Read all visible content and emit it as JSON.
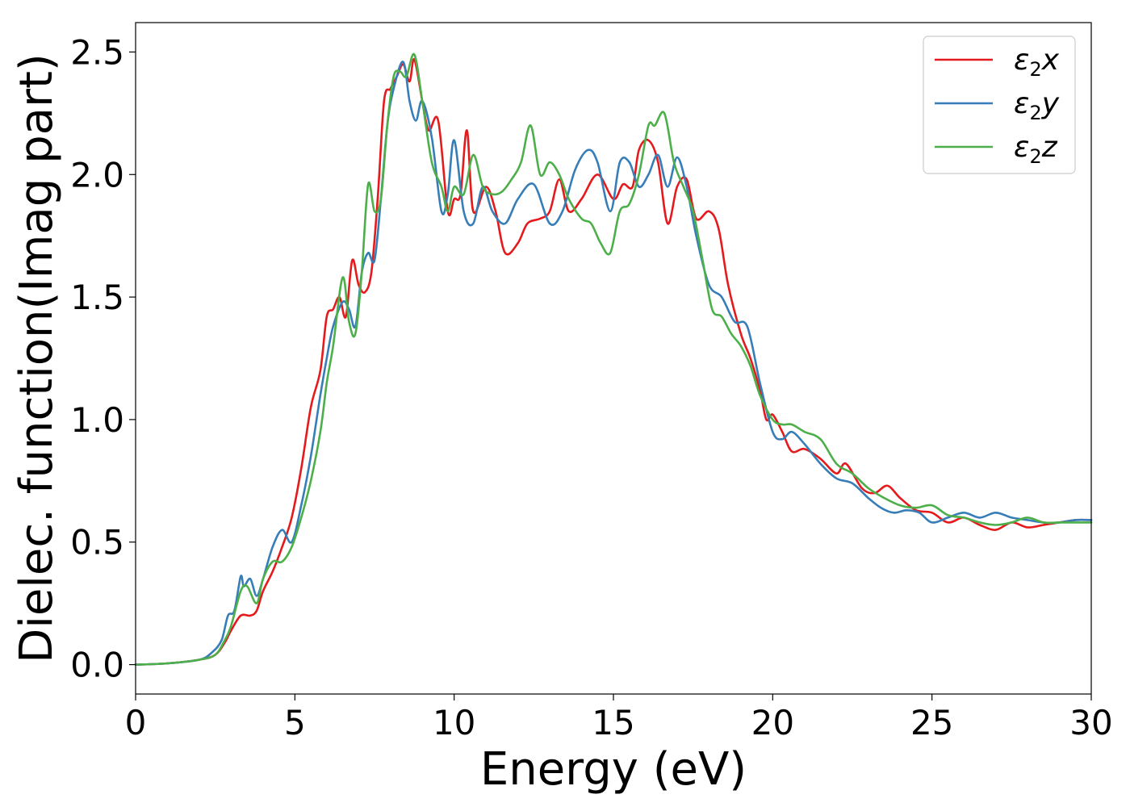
{
  "chart_data": {
    "type": "line",
    "title": "",
    "xlabel": "Energy (eV)",
    "ylabel": "Dielec. function(Imag part)",
    "xlim": [
      0,
      30
    ],
    "ylim": [
      -0.12,
      2.62
    ],
    "xticks": [
      0,
      5,
      10,
      15,
      20,
      25,
      30
    ],
    "xtick_labels": [
      "0",
      "5",
      "10",
      "15",
      "20",
      "25",
      "30"
    ],
    "yticks": [
      0.0,
      0.5,
      1.0,
      1.5,
      2.0,
      2.5
    ],
    "ytick_labels": [
      "0.0",
      "0.5",
      "1.0",
      "1.5",
      "2.0",
      "2.5"
    ],
    "grid": false,
    "legend_position": "top-right",
    "series": [
      {
        "name": "ε₂x",
        "legend_base": "ε",
        "legend_sub": "2",
        "legend_suffix": "x",
        "color": "#e41a1c",
        "x": [
          0,
          1,
          2,
          2.5,
          2.8,
          3.0,
          3.3,
          3.6,
          3.8,
          4.0,
          4.3,
          4.6,
          4.9,
          5.2,
          5.5,
          5.8,
          6.0,
          6.2,
          6.4,
          6.6,
          6.8,
          7.0,
          7.2,
          7.4,
          7.6,
          7.8,
          8.0,
          8.2,
          8.4,
          8.6,
          8.75,
          9.0,
          9.2,
          9.5,
          9.8,
          10.0,
          10.2,
          10.4,
          10.6,
          11.0,
          11.3,
          11.6,
          12.0,
          12.3,
          12.7,
          13.0,
          13.3,
          13.6,
          14.0,
          14.5,
          15.0,
          15.3,
          15.6,
          15.8,
          16.1,
          16.4,
          16.7,
          17.0,
          17.3,
          17.6,
          18.0,
          18.3,
          18.6,
          19.0,
          19.3,
          19.6,
          19.8,
          20.0,
          20.3,
          20.6,
          21.0,
          21.5,
          22.0,
          22.3,
          22.8,
          23.2,
          23.6,
          24.0,
          24.5,
          25.0,
          25.5,
          26.0,
          26.5,
          27.0,
          27.5,
          28.0,
          28.5,
          29.0,
          29.5,
          30.0
        ],
        "y": [
          0.0,
          0.005,
          0.02,
          0.04,
          0.09,
          0.14,
          0.2,
          0.2,
          0.22,
          0.3,
          0.38,
          0.48,
          0.6,
          0.8,
          1.05,
          1.2,
          1.42,
          1.45,
          1.5,
          1.42,
          1.65,
          1.55,
          1.52,
          1.6,
          1.9,
          2.3,
          2.35,
          2.4,
          2.45,
          2.38,
          2.47,
          2.3,
          2.18,
          2.22,
          1.85,
          1.9,
          1.92,
          2.18,
          1.85,
          1.95,
          1.85,
          1.68,
          1.72,
          1.8,
          1.82,
          1.85,
          1.98,
          1.85,
          1.9,
          2.0,
          1.9,
          1.96,
          1.95,
          2.1,
          2.14,
          2.05,
          1.8,
          1.95,
          1.98,
          1.82,
          1.85,
          1.78,
          1.55,
          1.35,
          1.25,
          1.12,
          1.0,
          1.02,
          0.95,
          0.87,
          0.88,
          0.84,
          0.78,
          0.82,
          0.72,
          0.7,
          0.73,
          0.68,
          0.63,
          0.62,
          0.58,
          0.6,
          0.57,
          0.55,
          0.58,
          0.56,
          0.57,
          0.58,
          0.59,
          0.59
        ]
      },
      {
        "name": "ε₂y",
        "legend_base": "ε",
        "legend_sub": "2",
        "legend_suffix": "y",
        "color": "#377eb8",
        "x": [
          0,
          1,
          2,
          2.4,
          2.7,
          2.9,
          3.1,
          3.3,
          3.4,
          3.6,
          3.8,
          4.0,
          4.3,
          4.6,
          4.9,
          5.2,
          5.5,
          5.8,
          6.0,
          6.2,
          6.5,
          6.7,
          6.9,
          7.1,
          7.3,
          7.5,
          7.7,
          7.9,
          8.1,
          8.4,
          8.6,
          8.8,
          9.0,
          9.3,
          9.6,
          9.8,
          10.0,
          10.3,
          10.6,
          10.9,
          11.2,
          11.6,
          12.0,
          12.5,
          13.0,
          13.4,
          13.8,
          14.2,
          14.5,
          14.9,
          15.2,
          15.5,
          15.8,
          16.1,
          16.4,
          16.7,
          17.0,
          17.3,
          17.6,
          18.0,
          18.4,
          18.8,
          19.2,
          19.6,
          20.0,
          20.3,
          20.6,
          21.0,
          21.5,
          22.0,
          22.5,
          23.0,
          23.4,
          23.8,
          24.2,
          24.6,
          25.0,
          25.5,
          26.0,
          26.5,
          27.0,
          27.5,
          28.0,
          28.5,
          29.0,
          29.5,
          30.0
        ],
        "y": [
          0.0,
          0.005,
          0.02,
          0.05,
          0.1,
          0.2,
          0.22,
          0.36,
          0.32,
          0.35,
          0.28,
          0.35,
          0.48,
          0.55,
          0.5,
          0.65,
          0.85,
          1.1,
          1.25,
          1.38,
          1.48,
          1.45,
          1.38,
          1.6,
          1.68,
          1.65,
          1.9,
          2.2,
          2.35,
          2.46,
          2.3,
          2.22,
          2.3,
          2.15,
          1.85,
          1.92,
          2.14,
          1.85,
          1.8,
          1.95,
          1.85,
          1.8,
          1.9,
          1.96,
          1.8,
          1.85,
          2.02,
          2.1,
          2.05,
          1.85,
          2.05,
          2.05,
          1.95,
          2.0,
          2.08,
          1.95,
          2.07,
          1.95,
          1.75,
          1.55,
          1.5,
          1.4,
          1.38,
          1.15,
          0.95,
          0.92,
          0.95,
          0.9,
          0.82,
          0.76,
          0.74,
          0.68,
          0.64,
          0.62,
          0.63,
          0.62,
          0.58,
          0.6,
          0.62,
          0.6,
          0.62,
          0.6,
          0.59,
          0.58,
          0.58,
          0.59,
          0.59
        ]
      },
      {
        "name": "ε₂z",
        "legend_base": "ε",
        "legend_sub": "2",
        "legend_suffix": "z",
        "color": "#4daf4a",
        "x": [
          0,
          1,
          2,
          2.5,
          2.8,
          3.0,
          3.3,
          3.5,
          3.8,
          4.0,
          4.3,
          4.6,
          4.9,
          5.2,
          5.5,
          5.8,
          6.0,
          6.2,
          6.5,
          6.7,
          6.9,
          7.1,
          7.3,
          7.5,
          7.7,
          7.9,
          8.1,
          8.3,
          8.5,
          8.75,
          9.0,
          9.3,
          9.6,
          9.8,
          10.0,
          10.3,
          10.6,
          10.9,
          11.2,
          11.5,
          11.8,
          12.1,
          12.4,
          12.7,
          13.0,
          13.3,
          13.6,
          14.0,
          14.3,
          14.6,
          14.9,
          15.2,
          15.5,
          15.8,
          16.1,
          16.3,
          16.6,
          16.9,
          17.2,
          17.5,
          17.8,
          18.1,
          18.4,
          18.7,
          19.0,
          19.3,
          19.6,
          20.0,
          20.3,
          20.6,
          21.0,
          21.5,
          22.0,
          22.5,
          23.0,
          23.5,
          24.0,
          24.5,
          25.0,
          25.5,
          26.0,
          26.5,
          27.0,
          27.5,
          28.0,
          28.5,
          29.0,
          29.5,
          30.0
        ],
        "y": [
          0.0,
          0.005,
          0.02,
          0.04,
          0.1,
          0.16,
          0.3,
          0.32,
          0.25,
          0.35,
          0.42,
          0.42,
          0.48,
          0.6,
          0.75,
          0.95,
          1.15,
          1.3,
          1.58,
          1.4,
          1.35,
          1.6,
          1.96,
          1.85,
          1.9,
          2.2,
          2.4,
          2.42,
          2.4,
          2.49,
          2.3,
          2.05,
          1.95,
          1.85,
          1.95,
          1.92,
          2.08,
          1.95,
          1.92,
          1.93,
          1.98,
          2.05,
          2.2,
          2.0,
          2.05,
          2.0,
          1.9,
          1.82,
          1.8,
          1.72,
          1.68,
          1.85,
          1.88,
          2.0,
          2.2,
          2.2,
          2.25,
          2.05,
          1.95,
          1.85,
          1.65,
          1.45,
          1.42,
          1.35,
          1.3,
          1.22,
          1.1,
          1.0,
          0.98,
          0.98,
          0.95,
          0.92,
          0.82,
          0.78,
          0.72,
          0.68,
          0.65,
          0.64,
          0.65,
          0.61,
          0.6,
          0.58,
          0.57,
          0.58,
          0.6,
          0.58,
          0.58,
          0.58,
          0.58
        ]
      }
    ]
  }
}
